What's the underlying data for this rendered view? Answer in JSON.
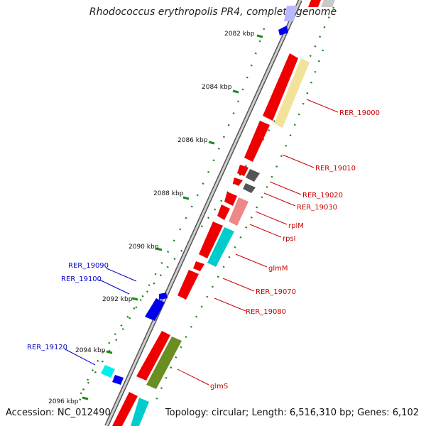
{
  "title": "Rhodococcus erythropolis PR4, complete genome",
  "accession": "Accession: NC_012490",
  "topology": "Topology: circular; Length: 6,516,310 bp; Genes: 6,102",
  "colors": {
    "backbone": "#8a8a8a",
    "tick": "#1a8a1a",
    "label_red": "#cc0000",
    "label_blue": "#0000cc"
  },
  "ticks": [
    "2082 kbp",
    "2084 kbp",
    "2086 kbp",
    "2088 kbp",
    "2090 kbp",
    "2092 kbp",
    "2094 kbp",
    "2096 kbp"
  ],
  "gene_labels": {
    "rer_19000": "RER_19000",
    "rer_19010": "RER_19010",
    "rer_19020": "RER_19020",
    "rer_19030": "RER_19030",
    "rplm": "rplM",
    "rpsi": "rpsI",
    "glmm": "glmM",
    "rer_19070": "RER_19070",
    "rer_19080": "RER_19080",
    "glms": "glmS",
    "rer_19090": "RER_19090",
    "rer_19100": "RER_19100",
    "rer_19120": "RER_19120"
  }
}
